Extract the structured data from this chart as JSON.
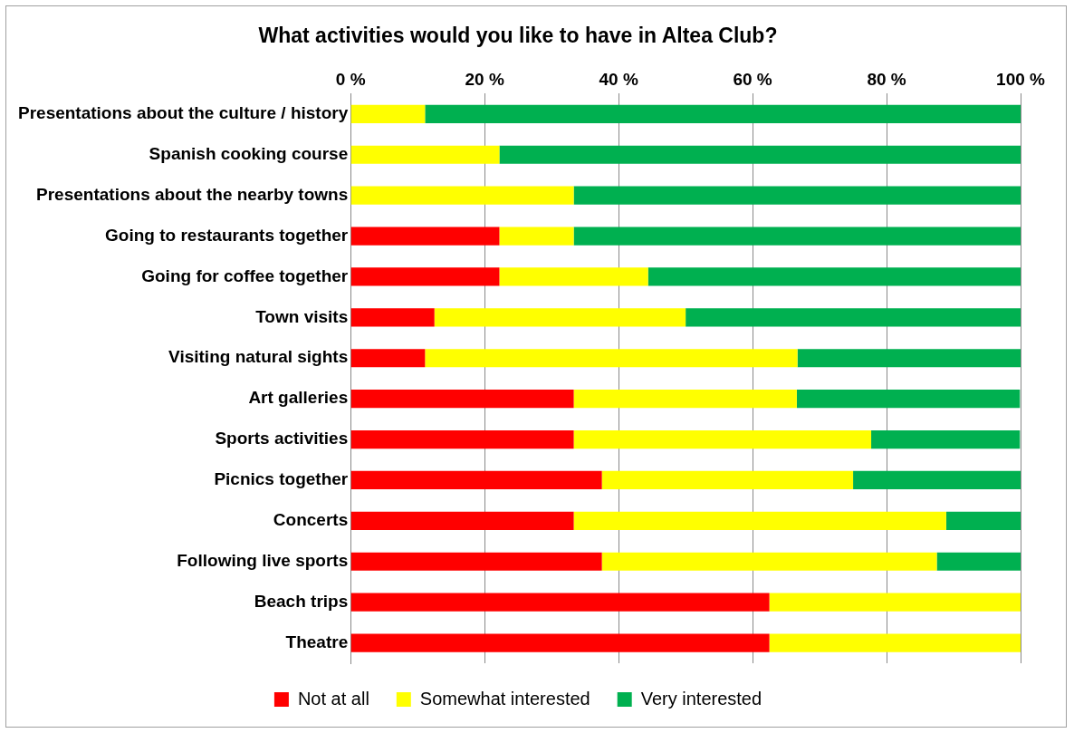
{
  "chart_data": {
    "type": "bar",
    "orientation": "horizontal",
    "stacked": true,
    "title": "What activities would you like to have in Altea Club?",
    "categories": [
      "Presentations about the culture / history",
      "Spanish cooking course",
      "Presentations about the nearby towns",
      "Going to restaurants together",
      "Going for coffee together",
      "Town visits",
      "Visiting natural sights",
      "Art galleries",
      "Sports activities",
      "Picnics together",
      "Concerts",
      "Following live sports",
      "Beach trips",
      "Theatre"
    ],
    "series": [
      {
        "name": "Not at all",
        "color": "#ff0000",
        "values": [
          0,
          0,
          0,
          22.2,
          22.2,
          12.5,
          11.1,
          33.3,
          33.3,
          37.5,
          33.3,
          37.5,
          62.5,
          62.5
        ]
      },
      {
        "name": "Somewhat interested",
        "color": "#ffff00",
        "values": [
          11.1,
          22.2,
          33.3,
          11.1,
          22.2,
          37.5,
          55.6,
          33.3,
          44.4,
          37.5,
          55.6,
          50,
          37.5,
          37.5
        ]
      },
      {
        "name": "Very interested",
        "color": "#00b050",
        "values": [
          88.9,
          77.8,
          66.7,
          66.7,
          55.6,
          50,
          33.3,
          33.3,
          22.2,
          25,
          11.1,
          12.5,
          0,
          0
        ]
      }
    ],
    "xlim": [
      0,
      100
    ],
    "xticks": [
      {
        "value": 0,
        "label": "0 %"
      },
      {
        "value": 20,
        "label": "20 %"
      },
      {
        "value": 40,
        "label": "40 %"
      },
      {
        "value": 60,
        "label": "60 %"
      },
      {
        "value": 80,
        "label": "80 %"
      },
      {
        "value": 100,
        "label": "100 %"
      }
    ],
    "grid": "x",
    "legend": "bottom"
  }
}
